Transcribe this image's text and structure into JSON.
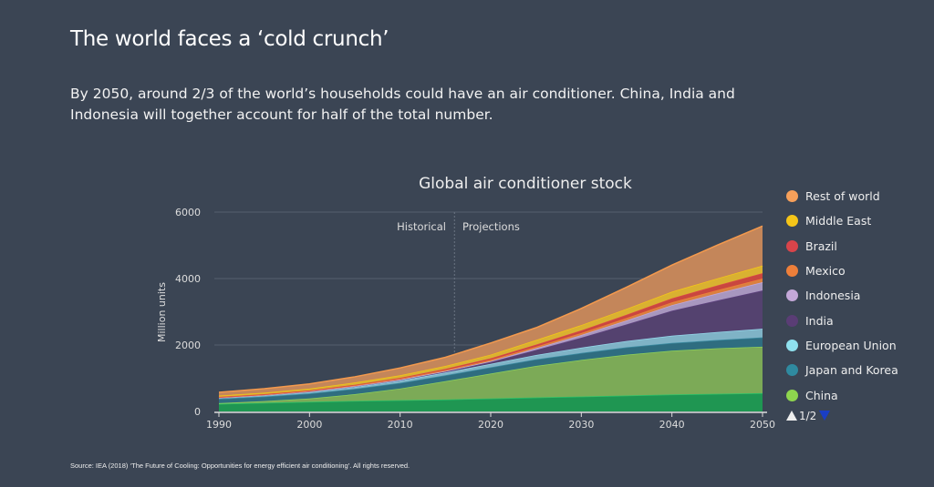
{
  "header": {
    "title": "The world faces a ‘cold crunch’",
    "subtitle": "By 2050, around 2/3 of the world’s households could have an air conditioner. China, India and Indonesia will together account for half of the total number."
  },
  "chart_data": {
    "type": "area",
    "stacked": true,
    "title": "Global air conditioner stock",
    "ylabel": "Million units",
    "xlabel": "",
    "xlim": [
      1990,
      2050
    ],
    "ylim": [
      0,
      6000
    ],
    "x_ticks": [
      "1990",
      "2000",
      "2010",
      "2020",
      "2030",
      "2040",
      "2050"
    ],
    "y_ticks": [
      "0",
      "2000",
      "4000",
      "6000"
    ],
    "annotations": {
      "divider_year": 2016,
      "left": "Historical",
      "right": "Projections"
    },
    "legend_position": "right",
    "legend_page": "1/2",
    "x": [
      1990,
      1995,
      2000,
      2005,
      2010,
      2015,
      2020,
      2025,
      2030,
      2035,
      2040,
      2045,
      2050
    ],
    "series": [
      {
        "name": null,
        "fill": "#1f9652",
        "line": "#2cc46a",
        "values": [
          230,
          260,
          290,
          320,
          340,
          360,
          390,
          420,
          450,
          480,
          510,
          530,
          550
        ]
      },
      {
        "name": "China",
        "color": "#8ed54e",
        "fill": "#7caa57",
        "line": "#8ed15a",
        "values": [
          20,
          50,
          100,
          200,
          350,
          550,
          750,
          950,
          1100,
          1230,
          1320,
          1370,
          1400
        ]
      },
      {
        "name": "Japan and Korea",
        "color": "#2f8aa0",
        "fill": "#2f6d80",
        "line": "#3a8aa0",
        "values": [
          130,
          140,
          150,
          160,
          170,
          180,
          190,
          200,
          210,
          220,
          230,
          250,
          280
        ]
      },
      {
        "name": "European Union",
        "color": "#8fe0ee",
        "fill": "#7fb3c6",
        "line": "#96d8ea",
        "values": [
          30,
          40,
          50,
          60,
          70,
          80,
          100,
          130,
          160,
          190,
          220,
          240,
          260
        ]
      },
      {
        "name": "India",
        "color": "#5a3d75",
        "fill": "#54426f",
        "line": "#5c3f7c",
        "values": [
          5,
          5,
          10,
          15,
          20,
          30,
          60,
          150,
          300,
          500,
          750,
          950,
          1150
        ]
      },
      {
        "name": "Indonesia",
        "color": "#c4a8d8",
        "fill": "#a897bf",
        "line": "#c2a8dc",
        "values": [
          2,
          3,
          5,
          8,
          10,
          15,
          25,
          50,
          80,
          120,
          170,
          210,
          250
        ]
      },
      {
        "name": "Mexico",
        "color": "#ee7f3a",
        "fill": "#d9803f",
        "line": "#ee7f3a",
        "values": [
          10,
          10,
          15,
          20,
          25,
          30,
          40,
          50,
          60,
          70,
          85,
          100,
          110
        ]
      },
      {
        "name": "Brazil",
        "color": "#d9444a",
        "fill": "#c9473f",
        "line": "#d9444a",
        "values": [
          10,
          12,
          15,
          20,
          25,
          35,
          45,
          60,
          80,
          100,
          120,
          140,
          160
        ]
      },
      {
        "name": "Middle East",
        "color": "#f5c518",
        "fill": "#d9b131",
        "line": "#f5c518",
        "values": [
          40,
          45,
          55,
          70,
          80,
          90,
          110,
          140,
          160,
          180,
          200,
          215,
          230
        ]
      },
      {
        "name": "Rest of world",
        "color": "#f7a05a",
        "fill": "#c4865a",
        "line": "#f59a4d",
        "values": [
          100,
          120,
          140,
          170,
          220,
          260,
          350,
          370,
          500,
          650,
          800,
          1000,
          1190
        ]
      }
    ]
  },
  "legend": {
    "items": [
      "Rest of world",
      "Middle East",
      "Brazil",
      "Mexico",
      "Indonesia",
      "India",
      "European Union",
      "Japan and Korea",
      "China"
    ],
    "colors": [
      "#f7a05a",
      "#f5c518",
      "#d9444a",
      "#ee7f3a",
      "#c4a8d8",
      "#5a3d75",
      "#8fe0ee",
      "#2f8aa0",
      "#8ed54e"
    ],
    "page": "1/2"
  },
  "footer": {
    "source": "Source: IEA (2018) ‘The Future of Cooling: Opportunities for energy efficient air conditioning’. All rights reserved."
  }
}
